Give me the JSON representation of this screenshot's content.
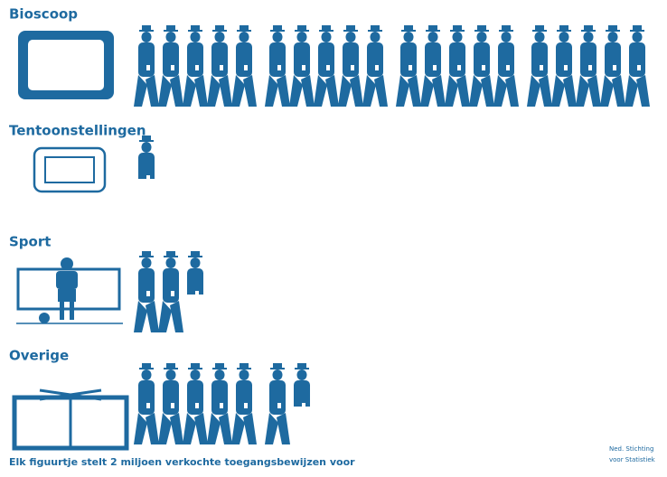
{
  "chart_data": {
    "type": "pictogram",
    "categories": [
      "Bioscoop",
      "Tentoonstellingen",
      "Sport",
      "Overige"
    ],
    "values": [
      20,
      0.5,
      2.5,
      6.5
    ],
    "color": "#1e6aa0",
    "group_size": 5,
    "footnote": "Elk figuurtje stelt 2 miljoen verkochte toegangsbewijzen voor",
    "source": [
      "Ned. Stichting",
      "voor Statistiek"
    ]
  }
}
